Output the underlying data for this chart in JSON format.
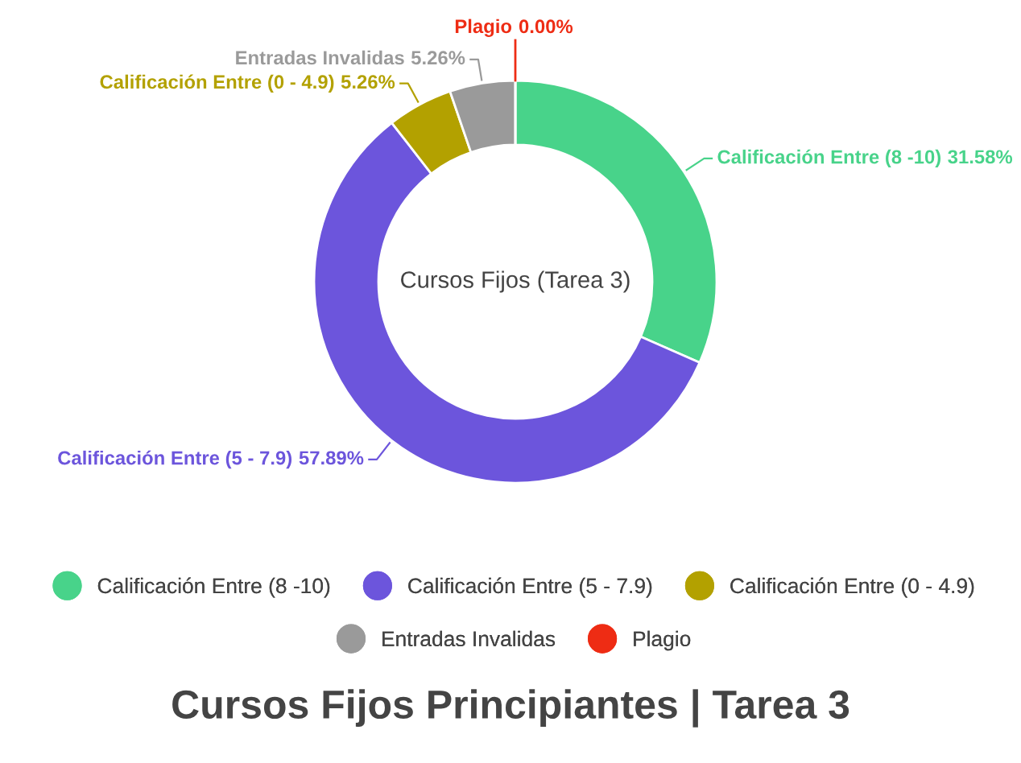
{
  "chart_data": {
    "type": "donut",
    "title": "Cursos Fijos Principiantes | Tarea 3",
    "subtitle": "Cursos Fijos (Tarea 3)",
    "categories": [
      "Calificación Entre (8 -10)",
      "Calificación Entre (5 - 7.9)",
      "Calificación Entre (0 - 4.9)",
      "Entradas Invalidas",
      "Plagio"
    ],
    "values": [
      31.58,
      57.89,
      5.26,
      5.26,
      0.0
    ],
    "value_labels": [
      "31.58%",
      "57.89%",
      "5.26%",
      "5.26%",
      "0.00%"
    ],
    "colors": [
      "#48d38a",
      "#6c55dc",
      "#b3a100",
      "#9a9a9a",
      "#ee2c14"
    ],
    "legend": "bottom"
  }
}
